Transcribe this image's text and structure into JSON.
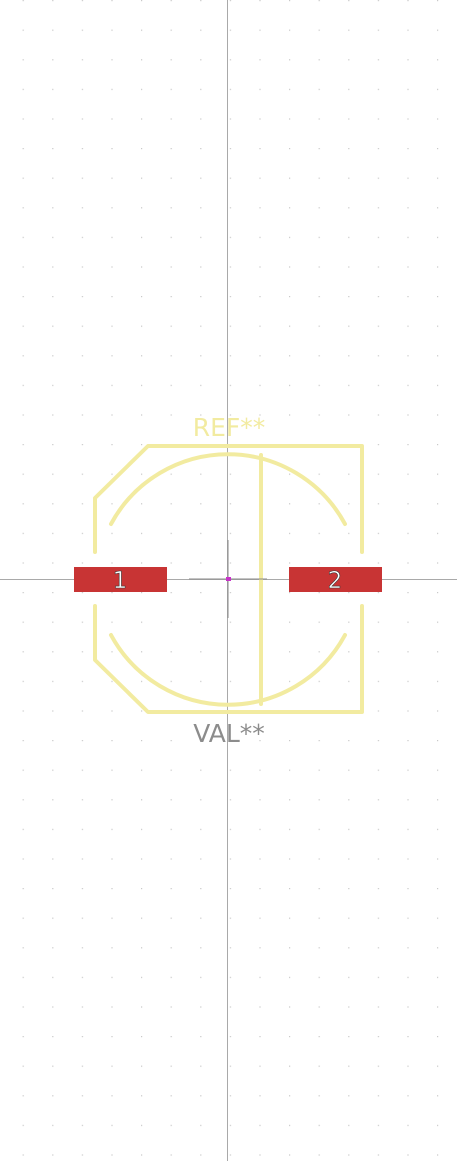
{
  "footprint": {
    "reference": "REF**",
    "value": "VAL**",
    "pads": [
      {
        "number": "1"
      },
      {
        "number": "2"
      }
    ]
  },
  "colors": {
    "background": "#ffffff",
    "grid_dot": "#c8c8c8",
    "axis_line": "#a9a9a9",
    "silkscreen": "#f2eba0",
    "pad": "#c83434",
    "pad_text": "#ffffff",
    "value_text": "#8c8c8c",
    "origin_marker": "#c832c8"
  }
}
